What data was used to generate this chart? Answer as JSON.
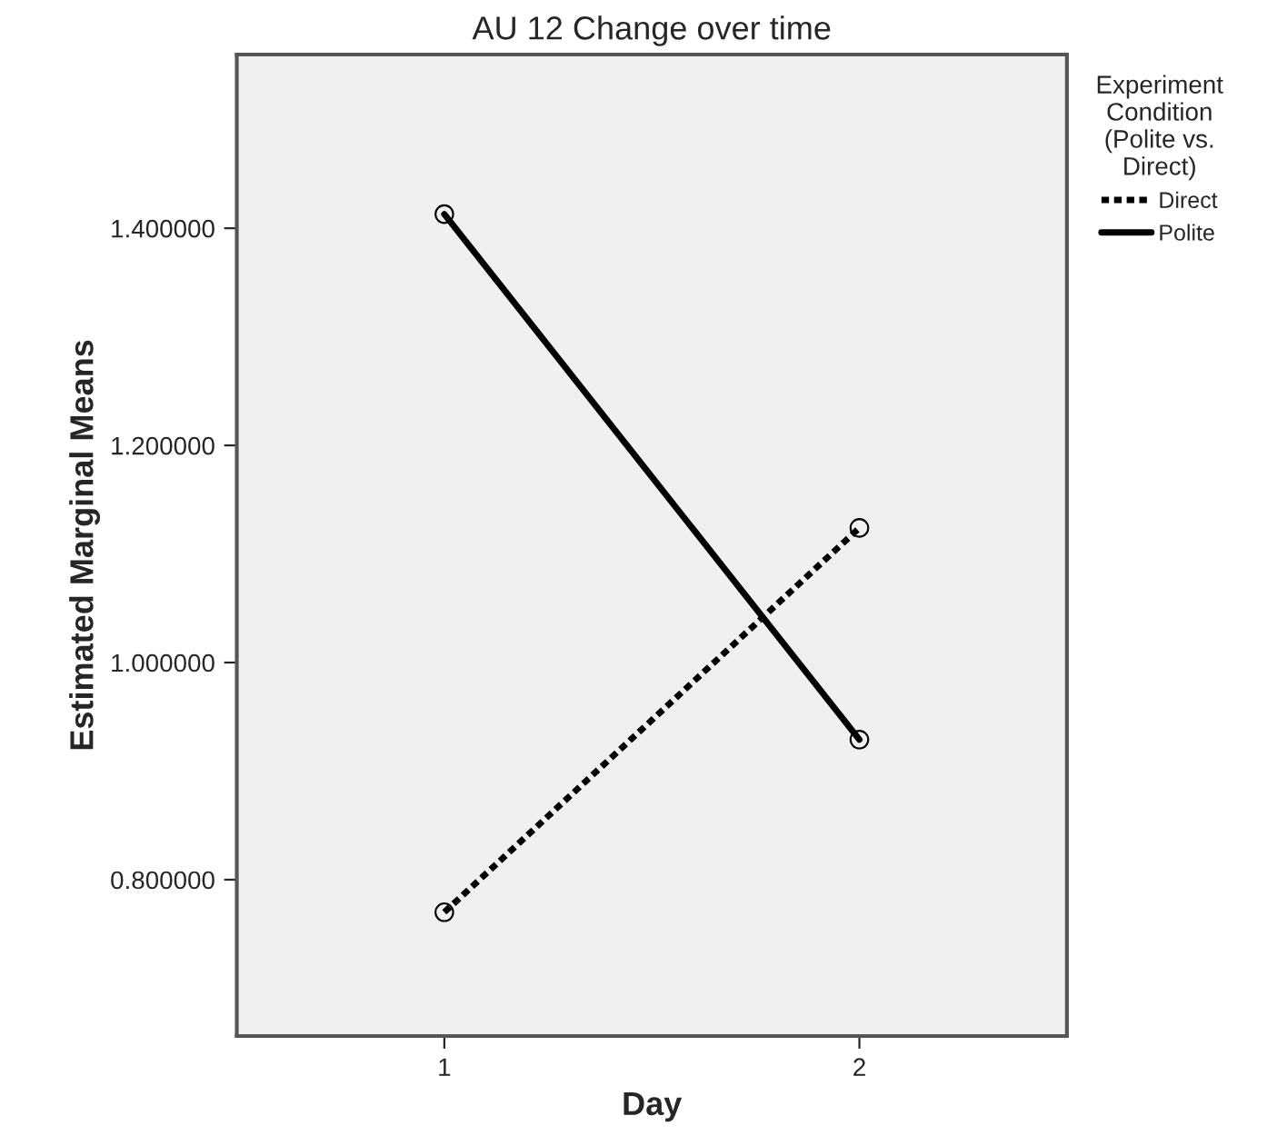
{
  "chart_data": {
    "type": "line",
    "title": "AU 12 Change over time",
    "xlabel": "Day",
    "ylabel": "Estimated Marginal Means",
    "legend_title": "Experiment\nCondition\n(Polite vs.\nDirect)",
    "x": [
      1,
      2
    ],
    "series": [
      {
        "name": "Direct",
        "color": "#000000",
        "values": [
          0.77,
          1.124
        ],
        "line_style": "dotted"
      },
      {
        "name": "Polite",
        "color": "#000000",
        "values": [
          1.413,
          0.929
        ],
        "line_style": "solid"
      }
    ],
    "xlim": [
      0.5,
      2.5
    ],
    "xticks": [
      1,
      2
    ],
    "ylim": [
      0.656,
      1.56
    ],
    "yticks": [
      {
        "value": 0.8,
        "label": "0.800000"
      },
      {
        "value": 1.0,
        "label": "1.000000"
      },
      {
        "value": 1.2,
        "label": "1.200000"
      },
      {
        "value": 1.4,
        "label": "1.400000"
      }
    ],
    "grid": false,
    "legend": "right",
    "marker": "circle"
  }
}
